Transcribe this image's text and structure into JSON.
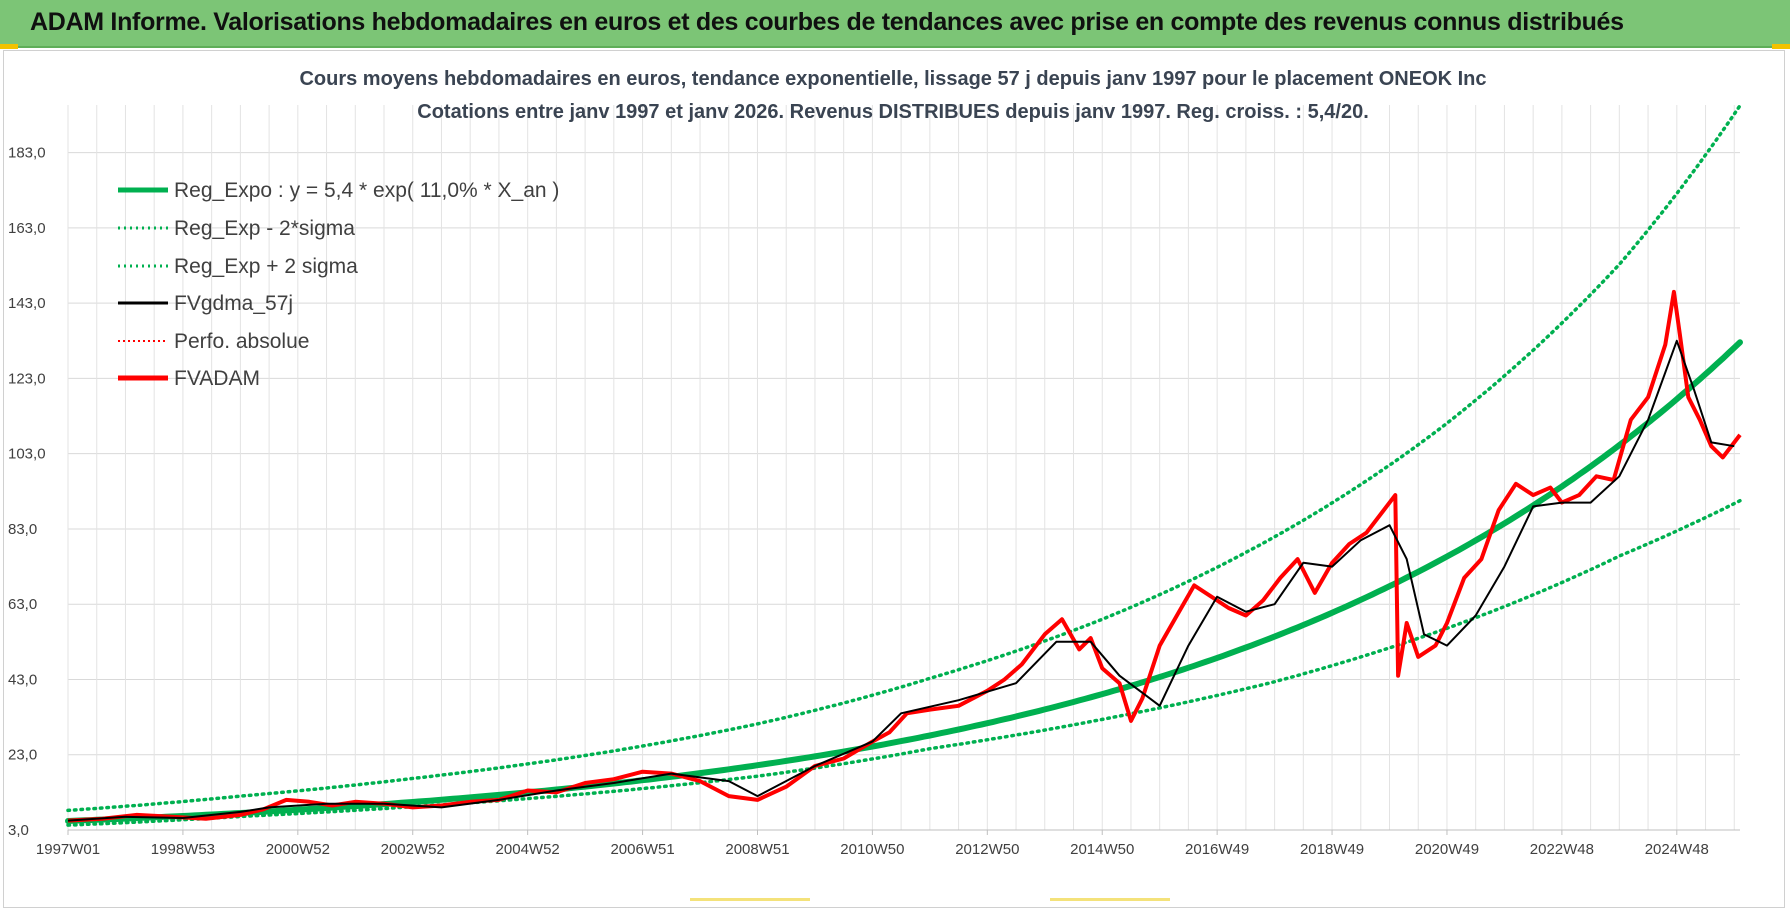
{
  "header": {
    "title": "ADAM Informe. Valorisations hebdomadaires en euros et des courbes de tendances avec prise en compte des revenus connus distribués"
  },
  "colors": {
    "header_bg": "#7cc576",
    "reg_expo": "#00b050",
    "sigma_bands": "#00b050",
    "fvgdma": "#000000",
    "perfo": "#ff0000",
    "fvadam": "#ff0000"
  },
  "chart_data": {
    "type": "line",
    "title": "Cours moyens hebdomadaires en euros, tendance exponentielle, lissage 57 j depuis janv 1997  pour le placement ONEOK Inc",
    "subtitle": "Cotations entre janv 1997 et janv 2026. Revenus DISTRIBUES depuis janv 1997. Reg. croiss. : 5,4/20.",
    "xlabel": "",
    "ylabel": "",
    "ylim": [
      3,
      193
    ],
    "xlim": [
      1997.0,
      2026.1
    ],
    "grid": true,
    "legend_position": "top-left",
    "y_ticks": [
      "3,0",
      "23,0",
      "43,0",
      "63,0",
      "83,0",
      "103,0",
      "123,0",
      "143,0",
      "163,0",
      "183,0"
    ],
    "x_ticks": [
      {
        "label": "1997W01",
        "x": 1997.0
      },
      {
        "label": "1998W53",
        "x": 1999.0
      },
      {
        "label": "2000W52",
        "x": 2001.0
      },
      {
        "label": "2002W52",
        "x": 2003.0
      },
      {
        "label": "2004W52",
        "x": 2005.0
      },
      {
        "label": "2006W51",
        "x": 2007.0
      },
      {
        "label": "2008W51",
        "x": 2009.0
      },
      {
        "label": "2010W50",
        "x": 2011.0
      },
      {
        "label": "2012W50",
        "x": 2013.0
      },
      {
        "label": "2014W50",
        "x": 2015.0
      },
      {
        "label": "2016W49",
        "x": 2017.0
      },
      {
        "label": "2018W49",
        "x": 2019.0
      },
      {
        "label": "2020W49",
        "x": 2021.0
      },
      {
        "label": "2022W48",
        "x": 2023.0
      },
      {
        "label": "2024W48",
        "x": 2025.0
      }
    ],
    "regression": {
      "a": 5.4,
      "rate": 0.11
    },
    "series": [
      {
        "name": "Reg_Expo : y = 5,4 * exp( 11,0% *  X_an )",
        "style": "thick-solid-green"
      },
      {
        "name": "Reg_Exp - 2*sigma",
        "style": "dotted-green",
        "x": [
          1997.0,
          2000.0,
          2003.0,
          2006.0,
          2009.0,
          2012.0,
          2015.0,
          2018.0,
          2021.0,
          2024.0,
          2026.1
        ],
        "y": [
          4.3,
          6.6,
          9.2,
          12.6,
          17.3,
          24.6,
          32.4,
          42.4,
          56.6,
          75.8,
          90.5
        ]
      },
      {
        "name": "Reg_Exp + 2 sigma",
        "style": "dotted-green",
        "x": [
          1997.0,
          2000.0,
          2003.0,
          2006.0,
          2009.0,
          2012.0,
          2015.0,
          2018.0,
          2021.0,
          2024.0,
          2026.1
        ],
        "y": [
          8.2,
          12.0,
          16.7,
          22.8,
          31.2,
          43.3,
          59.0,
          80.9,
          111.1,
          153.3,
          195.5
        ]
      },
      {
        "name": "FVgdma_57j",
        "style": "solid-black",
        "x": [
          1997.0,
          1998.0,
          1999.0,
          2000.0,
          2000.5,
          2001.5,
          2002.5,
          2003.5,
          2004.5,
          2005.5,
          2006.5,
          2007.5,
          2008.5,
          2009.0,
          2010.0,
          2011.0,
          2011.5,
          2012.5,
          2013.5,
          2014.2,
          2014.8,
          2015.3,
          2016.0,
          2016.5,
          2017.0,
          2017.5,
          2018.0,
          2018.5,
          2019.0,
          2019.5,
          2020.0,
          2020.3,
          2020.6,
          2021.0,
          2021.5,
          2022.0,
          2022.5,
          2023.0,
          2023.5,
          2024.0,
          2024.5,
          2025.0,
          2025.3,
          2025.6,
          2026.0
        ],
        "y": [
          5.5,
          6.5,
          6.2,
          7.8,
          9.0,
          10.0,
          10.0,
          9.0,
          11.0,
          13.5,
          15.5,
          18.0,
          16.0,
          12.0,
          20.0,
          26.5,
          34.0,
          37.5,
          42.0,
          53.0,
          53.0,
          44.0,
          36.0,
          52.0,
          65.0,
          61.0,
          63.0,
          74.0,
          73.0,
          80.0,
          84.0,
          75.0,
          55.0,
          52.0,
          60.0,
          73.0,
          89.0,
          90.0,
          90.0,
          97.0,
          112.0,
          133.0,
          120.0,
          106.0,
          105.0
        ]
      },
      {
        "name": "Perfo. absolue",
        "style": "dotted-red"
      },
      {
        "name": "FVADAM",
        "style": "thick-solid-red",
        "x": [
          1997.0,
          1997.6,
          1998.2,
          1998.8,
          1999.4,
          2000.0,
          2000.4,
          2000.8,
          2001.2,
          2001.6,
          2002.0,
          2002.5,
          2003.0,
          2003.5,
          2004.0,
          2004.5,
          2005.0,
          2005.5,
          2006.0,
          2006.5,
          2007.0,
          2007.5,
          2008.0,
          2008.5,
          2009.0,
          2009.5,
          2010.0,
          2010.5,
          2011.0,
          2011.3,
          2011.6,
          2012.0,
          2012.5,
          2013.0,
          2013.3,
          2013.6,
          2014.0,
          2014.3,
          2014.6,
          2014.8,
          2015.0,
          2015.3,
          2015.5,
          2015.7,
          2016.0,
          2016.3,
          2016.6,
          2016.9,
          2017.2,
          2017.5,
          2017.8,
          2018.1,
          2018.4,
          2018.7,
          2019.0,
          2019.3,
          2019.6,
          2019.9,
          2020.1,
          2020.15,
          2020.3,
          2020.5,
          2020.8,
          2021.0,
          2021.3,
          2021.6,
          2021.9,
          2022.2,
          2022.5,
          2022.8,
          2023.0,
          2023.3,
          2023.6,
          2023.9,
          2024.2,
          2024.5,
          2024.8,
          2024.95,
          2025.05,
          2025.2,
          2025.4,
          2025.6,
          2025.8,
          2026.1
        ],
        "y": [
          5.5,
          6.0,
          7.0,
          6.5,
          6.0,
          7.0,
          8.5,
          11.0,
          10.5,
          9.5,
          10.5,
          10.0,
          9.0,
          9.5,
          10.5,
          11.0,
          13.5,
          13.0,
          15.5,
          16.5,
          18.5,
          18.0,
          16.0,
          12.0,
          11.0,
          14.5,
          20.0,
          22.0,
          26.5,
          29.0,
          34.0,
          35.0,
          36.0,
          40.0,
          43.0,
          47.0,
          55.0,
          59.0,
          51.0,
          54.0,
          46.0,
          42.0,
          32.0,
          38.0,
          52.0,
          60.0,
          68.0,
          65.0,
          62.0,
          60.0,
          64.0,
          70.0,
          75.0,
          66.0,
          74.0,
          79.0,
          82.0,
          88.0,
          92.0,
          44.0,
          58.0,
          49.0,
          52.0,
          58.0,
          70.0,
          75.0,
          88.0,
          95.0,
          92.0,
          94.0,
          90.0,
          92.0,
          97.0,
          96.0,
          112.0,
          118.0,
          132.0,
          146.0,
          135.0,
          118.0,
          112.0,
          105.0,
          102.0,
          108.0
        ]
      }
    ]
  }
}
